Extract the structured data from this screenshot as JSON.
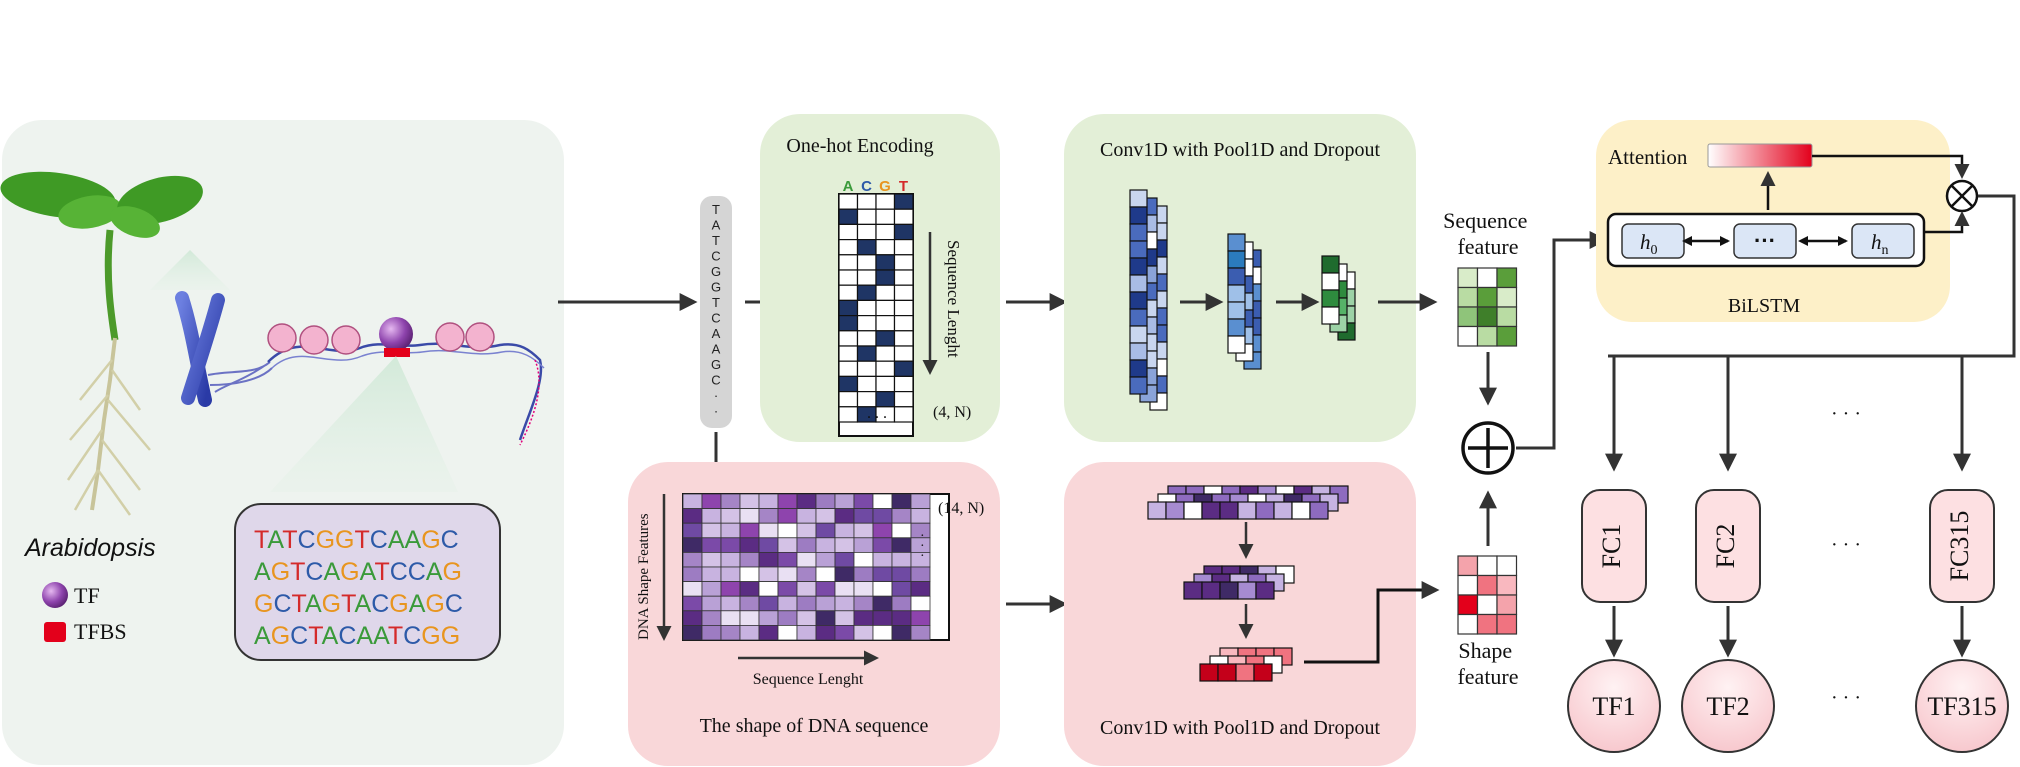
{
  "organism": {
    "label": "Arabidopsis",
    "legend": [
      {
        "label": "TF",
        "color": "#8e44ad",
        "icon": "tf-sphere-icon"
      },
      {
        "label": "TFBS",
        "color": "#e3001b",
        "icon": "tfbs-square-icon"
      }
    ],
    "sequence_lines": [
      "TATCGGTCAAGC",
      "AGTCAGATCCAG",
      "GCTAGTACGAGC",
      "AGCTACAATCGG"
    ]
  },
  "input_sequence": [
    "T",
    "A",
    "T",
    "C",
    "G",
    "G",
    "T",
    "C",
    "A",
    "A",
    "G",
    "C",
    "·",
    "·"
  ],
  "nucleotide_colors": {
    "A": "#3a9a3a",
    "T": "#d42a2a",
    "C": "#2d5aa8",
    "G": "#e8951f"
  },
  "onehot": {
    "title": "One-hot Encoding",
    "columns": [
      "A",
      "C",
      "G",
      "T"
    ],
    "axis_label": "Sequence Lenght",
    "dims": "(4, N)",
    "ellipsis": ". . ."
  },
  "shape": {
    "title": "The shape of DNA sequence",
    "axis_y": "DNA Shape Features",
    "axis_x": "Sequence Lenght",
    "dims": "(14, N)"
  },
  "conv_seq": {
    "title": "Conv1D with Pool1D and Dropout"
  },
  "conv_shape": {
    "title": "Conv1D with Pool1D and Dropout"
  },
  "features": {
    "sequence_line1": "Sequence",
    "sequence_line2": "feature",
    "shape_line1": "Shape",
    "shape_line2": "feature"
  },
  "bilstm": {
    "title": "BiLSTM",
    "attention": "Attention",
    "h0_main": "h",
    "h0_sub": "0",
    "mid": "···",
    "hn_main": "h",
    "hn_sub": "n"
  },
  "heads": {
    "fc": [
      "FC1",
      "FC2",
      "FC315"
    ],
    "tf": [
      "TF1",
      "TF2",
      "TF315"
    ],
    "ellipsis": "· · ·"
  },
  "colors": {
    "organism_panel": "#eef3ef",
    "green_panel": "#e3efd7",
    "pink_panel": "#f9d7d9",
    "yellow_panel": "#fdf0c8",
    "seq_bar": "#d5d5d5",
    "fc_fill": "#fde0e2",
    "tf_fill": "#fad2d6",
    "arrow": "#333333"
  }
}
